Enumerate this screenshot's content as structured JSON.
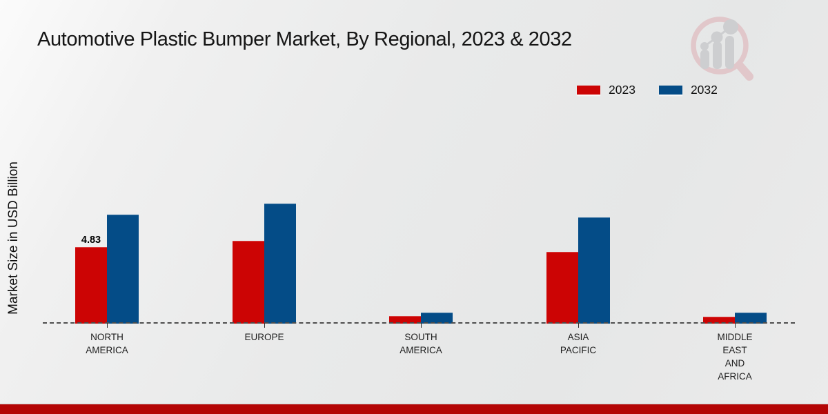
{
  "title": "Automotive Plastic Bumper Market, By Regional, 2023 & 2032",
  "chart_data": {
    "type": "bar",
    "title": "Automotive Plastic Bumper Market, By Regional, 2023 & 2032",
    "ylabel": "Market Size in USD Billion",
    "xlabel": "",
    "categories": [
      "NORTH AMERICA",
      "EUROPE",
      "SOUTH AMERICA",
      "ASIA PACIFIC",
      "MIDDLE EAST AND AFRICA"
    ],
    "series": [
      {
        "name": "2023",
        "color": "#cc0404",
        "values": [
          4.83,
          5.22,
          0.48,
          4.52,
          0.44
        ]
      },
      {
        "name": "2032",
        "color": "#044c87",
        "values": [
          6.88,
          7.57,
          0.7,
          6.7,
          0.7
        ]
      }
    ],
    "data_labels": [
      {
        "series_index": 0,
        "category_index": 0,
        "text": "4.83"
      }
    ],
    "ylim": [
      0,
      8.5
    ],
    "grid": false,
    "baseline_style": "dashed",
    "legend_position": "top-right"
  },
  "icons": {
    "logo_watermark": "magnifier-bar-chart-logo"
  },
  "footer": {
    "band_color": "#b40505"
  }
}
